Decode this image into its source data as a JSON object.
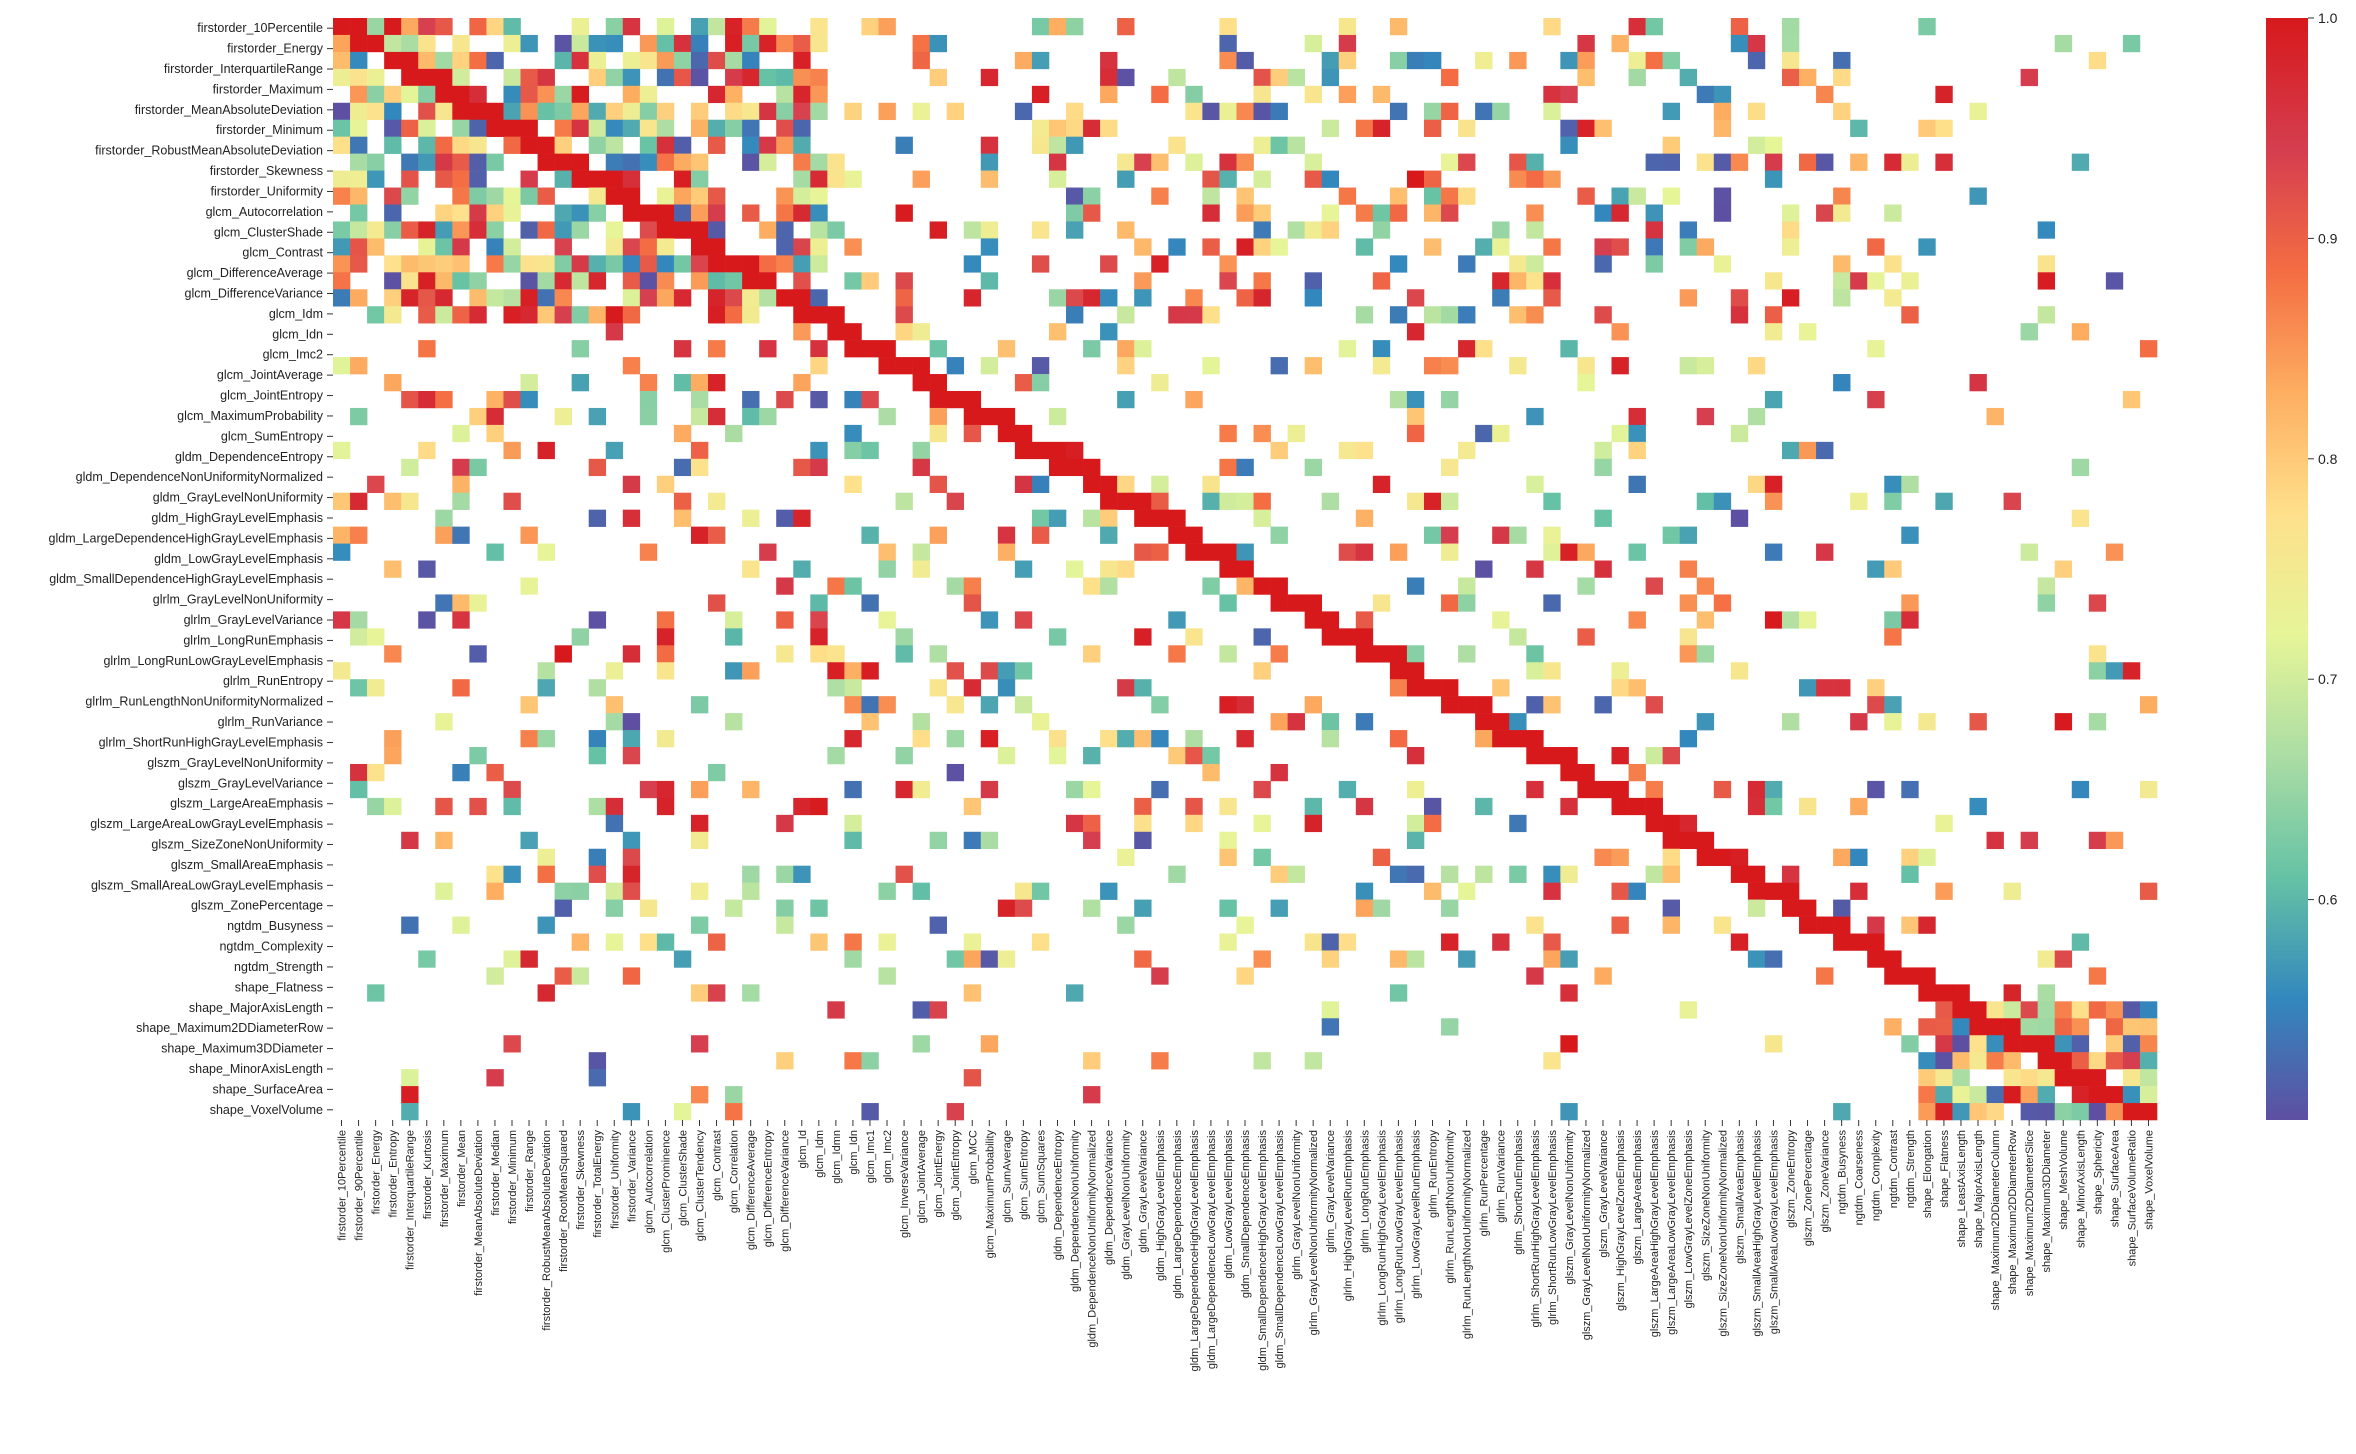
{
  "chart_data": {
    "type": "heatmap",
    "title": "",
    "xlabel": "",
    "ylabel": "",
    "threshold_note": "",
    "colorbar": {
      "ticks": [
        1.0,
        0.9,
        0.8,
        0.7,
        0.6
      ],
      "tick_labels": [
        "1.0",
        "0.9",
        "0.8",
        "0.7",
        "0.6"
      ],
      "vmin": 0.5,
      "vmax": 1.0,
      "colormap": [
        "#5e4fa2",
        "#3288bd",
        "#66c2a5",
        "#abdda4",
        "#e6f598",
        "#fee08b",
        "#fdae61",
        "#f46d43",
        "#d53e4f",
        "#d7191c"
      ]
    },
    "y_labels": [
      "firstorder_10Percentile",
      "firstorder_Energy",
      "firstorder_InterquartileRange",
      "firstorder_Maximum",
      "firstorder_MeanAbsoluteDeviation",
      "firstorder_Minimum",
      "firstorder_RobustMeanAbsoluteDeviation",
      "firstorder_Skewness",
      "firstorder_Uniformity",
      "glcm_Autocorrelation",
      "glcm_ClusterShade",
      "glcm_Contrast",
      "glcm_DifferenceAverage",
      "glcm_DifferenceVariance",
      "glcm_Idm",
      "glcm_Idn",
      "glcm_Imc2",
      "glcm_JointAverage",
      "glcm_JointEntropy",
      "glcm_MaximumProbability",
      "glcm_SumEntropy",
      "gldm_DependenceEntropy",
      "gldm_DependenceNonUniformityNormalized",
      "gldm_GrayLevelNonUniformity",
      "gldm_HighGrayLevelEmphasis",
      "gldm_LargeDependenceHighGrayLevelEmphasis",
      "gldm_LowGrayLevelEmphasis",
      "gldm_SmallDependenceHighGrayLevelEmphasis",
      "glrlm_GrayLevelNonUniformity",
      "glrlm_GrayLevelVariance",
      "glrlm_LongRunEmphasis",
      "glrlm_LongRunLowGrayLevelEmphasis",
      "glrlm_RunEntropy",
      "glrlm_RunLengthNonUniformityNormalized",
      "glrlm_RunVariance",
      "glrlm_ShortRunHighGrayLevelEmphasis",
      "glszm_GrayLevelNonUniformity",
      "glszm_GrayLevelVariance",
      "glszm_LargeAreaEmphasis",
      "glszm_LargeAreaLowGrayLevelEmphasis",
      "glszm_SizeZoneNonUniformity",
      "glszm_SmallAreaEmphasis",
      "glszm_SmallAreaLowGrayLevelEmphasis",
      "glszm_ZonePercentage",
      "ngtdm_Busyness",
      "ngtdm_Complexity",
      "ngtdm_Strength",
      "shape_Flatness",
      "shape_MajorAxisLength",
      "shape_Maximum2DDiameterRow",
      "shape_Maximum3DDiameter",
      "shape_MinorAxisLength",
      "shape_SurfaceArea",
      "shape_VoxelVolume"
    ],
    "x_labels": [
      "firstorder_10Percentile",
      "firstorder_90Percentile",
      "firstorder_Energy",
      "firstorder_Entropy",
      "firstorder_InterquartileRange",
      "firstorder_Kurtosis",
      "firstorder_Maximum",
      "firstorder_Mean",
      "firstorder_MeanAbsoluteDeviation",
      "firstorder_Median",
      "firstorder_Minimum",
      "firstorder_Range",
      "firstorder_RobustMeanAbsoluteDeviation",
      "firstorder_RootMeanSquared",
      "firstorder_Skewness",
      "firstorder_TotalEnergy",
      "firstorder_Uniformity",
      "firstorder_Variance",
      "glcm_Autocorrelation",
      "glcm_ClusterProminence",
      "glcm_ClusterShade",
      "glcm_ClusterTendency",
      "glcm_Contrast",
      "glcm_Correlation",
      "glcm_DifferenceAverage",
      "glcm_DifferenceEntropy",
      "glcm_DifferenceVariance",
      "glcm_Id",
      "glcm_Idm",
      "glcm_Idmn",
      "glcm_Idn",
      "glcm_Imc1",
      "glcm_Imc2",
      "glcm_InverseVariance",
      "glcm_JointAverage",
      "glcm_JointEnergy",
      "glcm_JointEntropy",
      "glcm_MCC",
      "glcm_MaximumProbability",
      "glcm_SumAverage",
      "glcm_SumEntropy",
      "glcm_SumSquares",
      "gldm_DependenceEntropy",
      "gldm_DependenceNonUniformity",
      "gldm_DependenceNonUniformityNormalized",
      "gldm_DependenceVariance",
      "gldm_GrayLevelNonUniformity",
      "gldm_GrayLevelVariance",
      "gldm_HighGrayLevelEmphasis",
      "gldm_LargeDependenceEmphasis",
      "gldm_LargeDependenceHighGrayLevelEmphasis",
      "gldm_LargeDependenceLowGrayLevelEmphasis",
      "gldm_LowGrayLevelEmphasis",
      "gldm_SmallDependenceEmphasis",
      "gldm_SmallDependenceHighGrayLevelEmphasis",
      "gldm_SmallDependenceLowGrayLevelEmphasis",
      "glrlm_GrayLevelNonUniformity",
      "glrlm_GrayLevelNonUniformityNormalized",
      "glrlm_GrayLevelVariance",
      "glrlm_HighGrayLevelRunEmphasis",
      "glrlm_LongRunEmphasis",
      "glrlm_LongRunHighGrayLevelEmphasis",
      "glrlm_LongRunLowGrayLevelEmphasis",
      "glrlm_LowGrayLevelRunEmphasis",
      "glrlm_RunEntropy",
      "glrlm_RunLengthNonUniformity",
      "glrlm_RunLengthNonUniformityNormalized",
      "glrlm_RunPercentage",
      "glrlm_RunVariance",
      "glrlm_ShortRunEmphasis",
      "glrlm_ShortRunHighGrayLevelEmphasis",
      "glrlm_ShortRunLowGrayLevelEmphasis",
      "glszm_GrayLevelNonUniformity",
      "glszm_GrayLevelNonUniformityNormalized",
      "glszm_GrayLevelVariance",
      "glszm_HighGrayLevelZoneEmphasis",
      "glszm_LargeAreaEmphasis",
      "glszm_LargeAreaHighGrayLevelEmphasis",
      "glszm_LargeAreaLowGrayLevelEmphasis",
      "glszm_LowGrayLevelZoneEmphasis",
      "glszm_SizeZoneNonUniformity",
      "glszm_SizeZoneNonUniformityNormalized",
      "glszm_SmallAreaEmphasis",
      "glszm_SmallAreaHighGrayLevelEmphasis",
      "glszm_SmallAreaLowGrayLevelEmphasis",
      "glszm_ZoneEntropy",
      "glszm_ZonePercentage",
      "glszm_ZoneVariance",
      "ngtdm_Busyness",
      "ngtdm_Coarseness",
      "ngtdm_Complexity",
      "ngtdm_Contrast",
      "ngtdm_Strength",
      "shape_Elongation",
      "shape_Flatness",
      "shape_LeastAxisLength",
      "shape_MajorAxisLength",
      "shape_Maximum2DDiameterColumn",
      "shape_Maximum2DDiameterRow",
      "shape_Maximum2DDiameterSlice",
      "shape_Maximum3DDiameter",
      "shape_MeshVolume",
      "shape_MinorAxisLength",
      "shape_Sphericity",
      "shape_SurfaceArea",
      "shape_SurfaceVolumeRatio",
      "shape_VoxelVolume"
    ]
  }
}
